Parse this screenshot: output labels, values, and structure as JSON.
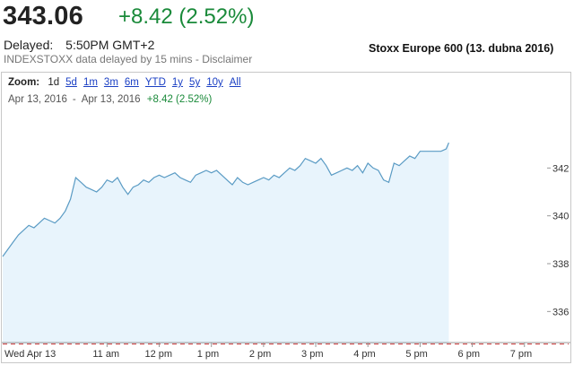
{
  "quote": {
    "price": "343.06",
    "change": "+8.42 (2.52%)",
    "delayed_label": "Delayed:",
    "delayed_time": "5:50PM GMT+2",
    "source_text": "INDEXSTOXX data delayed by 15 mins - ",
    "disclaimer_link": "Disclaimer"
  },
  "chart_title": "Stoxx Europe 600 (13. dubna 2016)",
  "zoom": {
    "label": "Zoom:",
    "options": [
      "1d",
      "5d",
      "1m",
      "3m",
      "6m",
      "YTD",
      "1y",
      "5y",
      "10y",
      "All"
    ],
    "active": "1d"
  },
  "range": {
    "start": "Apr 13, 2016",
    "separator": "-",
    "end": "Apr 13, 2016",
    "change": "+8.42 (2.52%)"
  },
  "colors": {
    "line": "#5a9bc4",
    "fill": "#e8f4fc",
    "positive": "#1a8a3a",
    "baseline": "#c83232"
  },
  "chart_data": {
    "type": "area",
    "title": "",
    "xlabel": "",
    "ylabel": "",
    "x_ticks": [
      "Wed Apr 13",
      "11 am",
      "12 pm",
      "1 pm",
      "2 pm",
      "3 pm",
      "4 pm",
      "5 pm",
      "6 pm",
      "7 pm"
    ],
    "x_tick_hours": [
      9,
      11,
      12,
      13,
      14,
      15,
      16,
      17,
      18,
      19
    ],
    "y_ticks": [
      336,
      338,
      340,
      342
    ],
    "xlim": [
      9,
      19.4
    ],
    "ylim": [
      334.7,
      344.3
    ],
    "baseline_value": 334.64,
    "series": [
      {
        "x": [
          9.0,
          9.1,
          9.2,
          9.3,
          9.4,
          9.5,
          9.6,
          9.7,
          9.8,
          9.9,
          10.0,
          10.1,
          10.2,
          10.3,
          10.4,
          10.5,
          10.6,
          10.7,
          10.8,
          10.9,
          11.0,
          11.1,
          11.2,
          11.3,
          11.4,
          11.5,
          11.6,
          11.7,
          11.8,
          11.9,
          12.0,
          12.1,
          12.2,
          12.3,
          12.4,
          12.5,
          12.6,
          12.7,
          12.8,
          12.9,
          13.0,
          13.1,
          13.2,
          13.3,
          13.4,
          13.5,
          13.6,
          13.7,
          13.8,
          13.9,
          14.0,
          14.1,
          14.2,
          14.3,
          14.4,
          14.5,
          14.6,
          14.7,
          14.8,
          14.9,
          15.0,
          15.1,
          15.2,
          15.3,
          15.4,
          15.5,
          15.6,
          15.7,
          15.8,
          15.9,
          16.0,
          16.1,
          16.2,
          16.3,
          16.4,
          16.5,
          16.6,
          16.7,
          16.8,
          16.9,
          17.0,
          17.1,
          17.2,
          17.3,
          17.4,
          17.5,
          17.55
        ],
        "y": [
          338.3,
          338.6,
          338.9,
          339.2,
          339.4,
          339.6,
          339.5,
          339.7,
          339.9,
          339.8,
          339.7,
          339.9,
          340.2,
          340.7,
          341.6,
          341.4,
          341.2,
          341.1,
          341.0,
          341.2,
          341.5,
          341.4,
          341.6,
          341.2,
          340.9,
          341.2,
          341.3,
          341.5,
          341.4,
          341.6,
          341.7,
          341.6,
          341.7,
          341.8,
          341.6,
          341.5,
          341.4,
          341.7,
          341.8,
          341.9,
          341.8,
          341.9,
          341.7,
          341.5,
          341.3,
          341.6,
          341.4,
          341.3,
          341.4,
          341.5,
          341.6,
          341.5,
          341.7,
          341.6,
          341.8,
          342.0,
          341.9,
          342.1,
          342.4,
          342.3,
          342.2,
          342.4,
          342.1,
          341.7,
          341.8,
          341.9,
          342.0,
          341.9,
          342.1,
          341.8,
          342.2,
          342.0,
          341.9,
          341.5,
          341.4,
          342.2,
          342.1,
          342.3,
          342.5,
          342.4,
          342.7,
          342.7,
          342.7,
          342.7,
          342.7,
          342.8,
          343.06
        ]
      }
    ],
    "grid": false,
    "legend": "none"
  }
}
